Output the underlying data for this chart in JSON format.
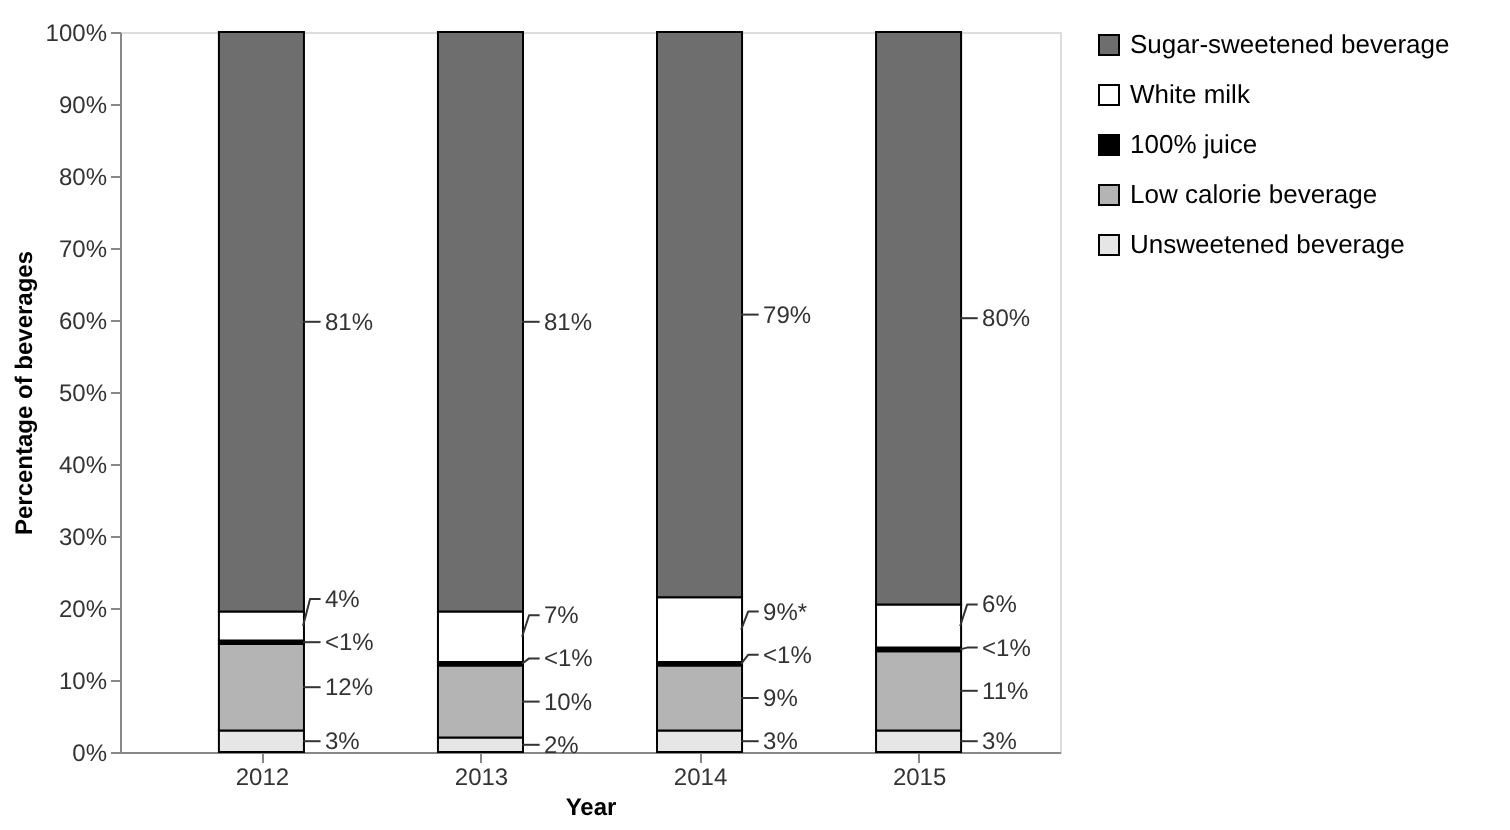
{
  "chart_data": {
    "type": "bar",
    "stacked": true,
    "xlabel": "Year",
    "ylabel": "Percentage of beverages",
    "categories": [
      "2012",
      "2013",
      "2014",
      "2015"
    ],
    "series": [
      {
        "name": "Unsweetened beverage",
        "color": "#e6e6e6",
        "values": [
          3,
          2,
          3,
          3
        ],
        "value_labels": [
          "3%",
          "2%",
          "3%",
          "3%"
        ]
      },
      {
        "name": "Low calorie beverage",
        "color": "#b4b4b4",
        "values": [
          12,
          10,
          9,
          11
        ],
        "value_labels": [
          "12%",
          "10%",
          "9%",
          "11%"
        ]
      },
      {
        "name": "100% juice",
        "color": "#000000",
        "values": [
          0.5,
          0.5,
          0.5,
          0.5
        ],
        "value_labels": [
          "<1%",
          "<1%",
          "<1%",
          "<1%"
        ]
      },
      {
        "name": "White milk",
        "color": "#ffffff",
        "values": [
          4,
          7,
          9,
          6
        ],
        "value_labels": [
          "4%",
          "7%",
          "9%*",
          "6%"
        ]
      },
      {
        "name": "Sugar-sweetened beverage",
        "color": "#6e6e6e",
        "values": [
          80.5,
          80.5,
          78.5,
          79.5
        ],
        "value_labels": [
          "81%",
          "81%",
          "79%",
          "80%"
        ]
      }
    ],
    "ylim": [
      0,
      100
    ],
    "yticks": [
      {
        "value": 0,
        "label": "0%"
      },
      {
        "value": 10,
        "label": "10%"
      },
      {
        "value": 20,
        "label": "20%"
      },
      {
        "value": 30,
        "label": "30%"
      },
      {
        "value": 40,
        "label": "40%"
      },
      {
        "value": 50,
        "label": "50%"
      },
      {
        "value": 60,
        "label": "60%"
      },
      {
        "value": 70,
        "label": "70%"
      },
      {
        "value": 80,
        "label": "80%"
      },
      {
        "value": 90,
        "label": "90%"
      },
      {
        "value": 100,
        "label": "100%"
      }
    ],
    "grid": false,
    "legend": "right"
  }
}
